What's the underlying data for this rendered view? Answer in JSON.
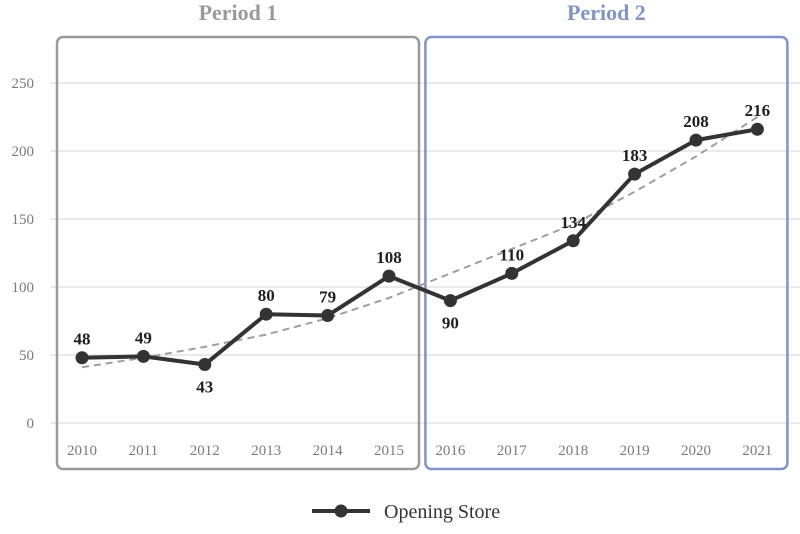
{
  "chart_data": {
    "type": "line",
    "categories": [
      "2010",
      "2011",
      "2012",
      "2013",
      "2014",
      "2015",
      "2016",
      "2017",
      "2018",
      "2019",
      "2020",
      "2021"
    ],
    "series": [
      {
        "name": "Opening Store",
        "values": [
          48,
          49,
          43,
          80,
          79,
          108,
          90,
          110,
          134,
          183,
          208,
          216
        ],
        "color": "#333333"
      }
    ],
    "trendline": {
      "style": "dashed",
      "color": "#9e9e9e",
      "values": [
        41,
        48,
        56,
        65,
        77,
        92,
        110,
        128,
        146,
        170,
        196,
        225
      ]
    },
    "periods": [
      {
        "label": "Period 1",
        "from": "2010",
        "to": "2015",
        "color": "#9a9a9a"
      },
      {
        "label": "Period 2",
        "from": "2016",
        "to": "2021",
        "color": "#8294c7"
      }
    ],
    "yticks": [
      0,
      50,
      100,
      150,
      200,
      250
    ],
    "ylim": [
      0,
      250
    ],
    "grid": true,
    "legend": {
      "position": "bottom",
      "label": "Opening Store"
    },
    "data_label_positions": [
      "above",
      "above",
      "below",
      "above",
      "above",
      "above",
      "below",
      "above",
      "above",
      "above",
      "above",
      "above"
    ],
    "title": "",
    "xlabel": "",
    "ylabel": ""
  }
}
